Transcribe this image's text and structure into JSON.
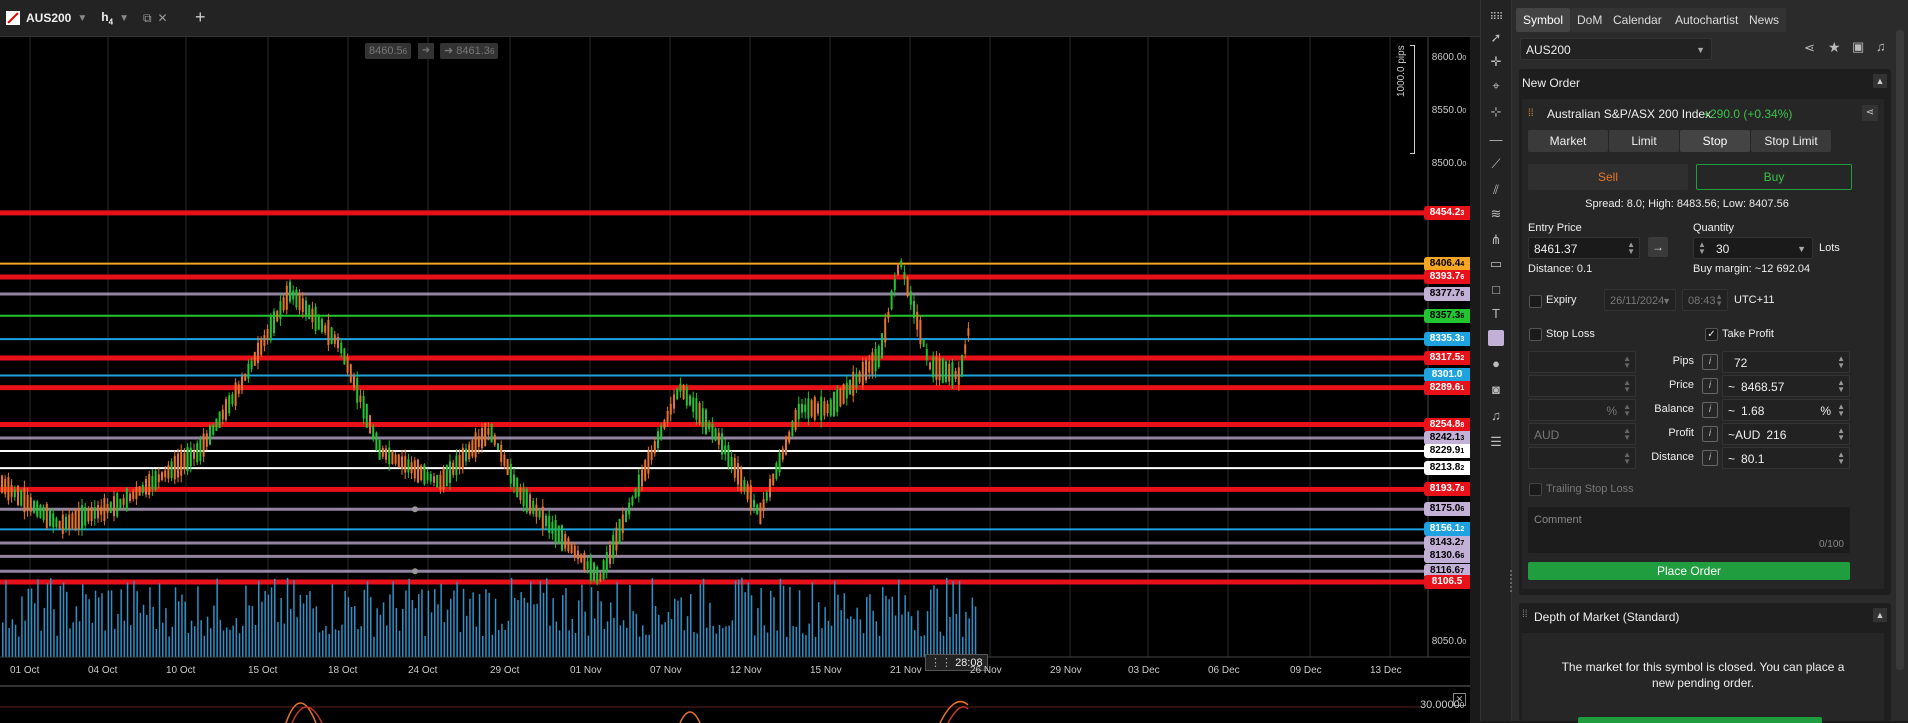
{
  "top_tab": {
    "symbol": "AUS200",
    "timeframe": "h",
    "timeframe_sub": "4"
  },
  "chart": {
    "watermark_left": "8460.5",
    "watermark_left_small": "6",
    "watermark_right": "8461.3",
    "watermark_right_small": "6",
    "pips_ruler": "1000.0 pips",
    "cursor_time": "28:08",
    "price_axis": [
      {
        "p": 8600.0,
        "label": "8600.0",
        "small": "0"
      },
      {
        "p": 8550.0,
        "label": "8550.0",
        "small": "0"
      },
      {
        "p": 8500.0,
        "label": "8500.0",
        "small": "0"
      },
      {
        "p": 8050.0,
        "label": "8050.0",
        "small": "0"
      }
    ],
    "price_tags": [
      {
        "p": 8454.2,
        "label": "8454.2",
        "small": "3",
        "color": "#e8111a",
        "text": "#fff"
      },
      {
        "p": 8406.4,
        "label": "8406.4",
        "small": "4",
        "color": "#f5a623",
        "text": "#000"
      },
      {
        "p": 8393.7,
        "label": "8393.7",
        "small": "6",
        "color": "#e8111a",
        "text": "#fff"
      },
      {
        "p": 8377.7,
        "label": "8377.7",
        "small": "6",
        "color": "#c3b0d6",
        "text": "#000"
      },
      {
        "p": 8357.3,
        "label": "8357.3",
        "small": "6",
        "color": "#22c42f",
        "text": "#000"
      },
      {
        "p": 8335.3,
        "label": "8335.3",
        "small": "3",
        "color": "#1ea3e0",
        "text": "#fff"
      },
      {
        "p": 8317.5,
        "label": "8317.5",
        "small": "2",
        "color": "#e8111a",
        "text": "#fff"
      },
      {
        "p": 8301.0,
        "label": "8301.0",
        "small": "",
        "color": "#1ea3e0",
        "text": "#fff"
      },
      {
        "p": 8289.6,
        "label": "8289.6",
        "small": "1",
        "color": "#e8111a",
        "text": "#fff"
      },
      {
        "p": 8254.8,
        "label": "8254.8",
        "small": "8",
        "color": "#e8111a",
        "text": "#fff"
      },
      {
        "p": 8242.1,
        "label": "8242.1",
        "small": "3",
        "color": "#c3b0d6",
        "text": "#000"
      },
      {
        "p": 8229.9,
        "label": "8229.9",
        "small": "1",
        "color": "#ffffff",
        "text": "#000"
      },
      {
        "p": 8213.8,
        "label": "8213.8",
        "small": "2",
        "color": "#ffffff",
        "text": "#000"
      },
      {
        "p": 8193.7,
        "label": "8193.7",
        "small": "8",
        "color": "#e8111a",
        "text": "#fff"
      },
      {
        "p": 8175.0,
        "label": "8175.0",
        "small": "6",
        "color": "#c3b0d6",
        "text": "#000"
      },
      {
        "p": 8156.1,
        "label": "8156.1",
        "small": "2",
        "color": "#1ea3e0",
        "text": "#fff"
      },
      {
        "p": 8143.2,
        "label": "8143.2",
        "small": "7",
        "color": "#c3b0d6",
        "text": "#000"
      },
      {
        "p": 8130.6,
        "label": "8130.6",
        "small": "6",
        "color": "#c3b0d6",
        "text": "#000"
      },
      {
        "p": 8116.6,
        "label": "8116.6",
        "small": "7",
        "color": "#c3b0d6",
        "text": "#000"
      },
      {
        "p": 8106.5,
        "label": "8106.5",
        "small": "",
        "color": "#e8111a",
        "text": "#fff"
      }
    ],
    "dates": [
      "01 Oct",
      "04 Oct",
      "10 Oct",
      "15 Oct",
      "18 Oct",
      "24 Oct",
      "29 Oct",
      "01 Nov",
      "07 Nov",
      "12 Nov",
      "15 Nov",
      "21 Nov",
      "26 Nov",
      "29 Nov",
      "03 Dec",
      "06 Dec",
      "09 Dec",
      "13 Dec"
    ],
    "sub_label": "30.0000",
    "sub_label_small": "0"
  },
  "panel": {
    "tabs": [
      "Symbol",
      "DoM",
      "Calendar",
      "Autochartist",
      "News"
    ],
    "symbol_select": "AUS200",
    "new_order_title": "New Order",
    "instrument_name": "Australian S&P/ASX 200 Index",
    "change": "+290.0 (+0.34%)",
    "order_types": [
      "Market",
      "Limit",
      "Stop",
      "Stop Limit"
    ],
    "sell_label": "Sell",
    "buy_label": "Buy",
    "spread_info": "Spread: 8.0; High: 8483.56; Low: 8407.56",
    "entry_price_label": "Entry Price",
    "entry_price": "8461.37",
    "distance_info": "Distance: 0.1",
    "quantity_label": "Quantity",
    "quantity": "30",
    "lots_label": "Lots",
    "buy_margin": "Buy margin: ~12 692.04",
    "expiry_label": "Expiry",
    "expiry_date": "26/11/2024",
    "expiry_time": "08:43",
    "timezone": "UTC+11",
    "stop_loss_label": "Stop Loss",
    "take_profit_label": "Take Profit",
    "rows": [
      {
        "label": "Pips",
        "left_suffix": "",
        "prefix": "",
        "value": "72",
        "suffix": ""
      },
      {
        "label": "Price",
        "left_suffix": "",
        "prefix": "~",
        "value": "8468.57",
        "suffix": ""
      },
      {
        "label": "Balance",
        "left_suffix": "%",
        "prefix": "~",
        "value": "1.68",
        "suffix": "%"
      },
      {
        "label": "Profit",
        "left_suffix": "",
        "prefix": "~AUD",
        "value": "216",
        "suffix": ""
      },
      {
        "label": "Distance",
        "left_suffix": "",
        "prefix": "~",
        "value": "80.1",
        "suffix": ""
      }
    ],
    "profit_left_placeholder": "AUD",
    "trailing_label": "Trailing Stop Loss",
    "comment_placeholder": "Comment",
    "comment_count": "0/100",
    "place_order": "Place Order",
    "dom_title": "Depth of Market (Standard)",
    "dom_message": "The market for this symbol is closed. You can place a new pending order.",
    "colors": {
      "buy": "#1f9d3f",
      "sell_text": "#e8742a",
      "change": "#3bc24a",
      "accent": "#1f9d3f"
    }
  }
}
